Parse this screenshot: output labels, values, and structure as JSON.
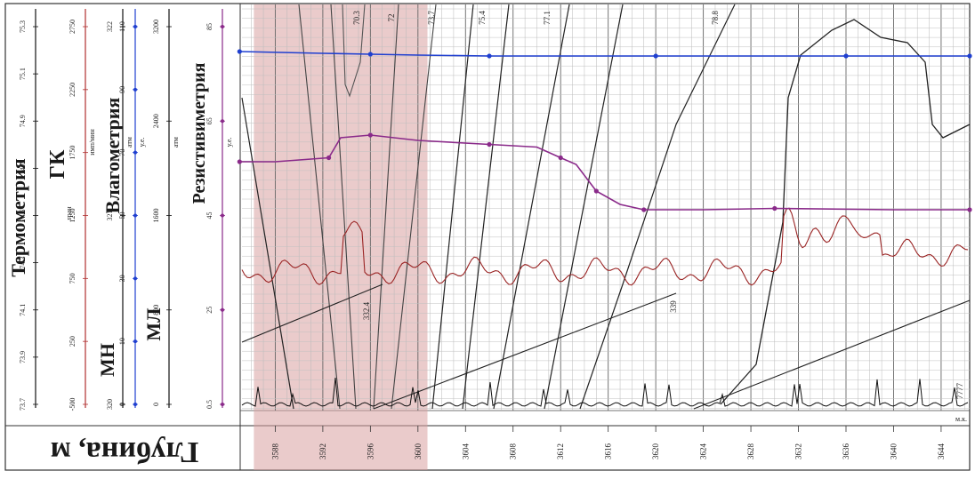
{
  "chart_data": {
    "type": "line",
    "orientation": "rotated-90",
    "depth_axis": {
      "title": "Глубина, м",
      "ticks": [
        3588,
        3592,
        3596,
        3600,
        3604,
        3608,
        3612,
        3616,
        3620,
        3624,
        3628,
        3632,
        3636,
        3640,
        3644
      ],
      "range": [
        3585.2,
        3646.4
      ],
      "note": "м.к."
    },
    "highlight_interval": [
      3586.2,
      3600.8
    ],
    "tracks": [
      {
        "name": "Термометрия",
        "scale_ticks": [
          "73.7",
          "73.9",
          "74.1",
          "74.3",
          "74.5",
          "74.7",
          "74.9",
          "75.1",
          "75.3"
        ],
        "color": "#111111"
      },
      {
        "name": "МН",
        "unit": "атм",
        "scale_ticks": [
          "320",
          "321",
          "322"
        ],
        "color": "#111111"
      },
      {
        "name": "ГК",
        "unit": "имп/мин",
        "scale_ticks": [
          "-500",
          "250",
          "750",
          "1250",
          "1750",
          "2250",
          "2750"
        ],
        "sub_ticks": [
          "-100",
          "250"
        ],
        "sub_unit": "гран",
        "color": "#b03030"
      },
      {
        "name": "МЛ",
        "unit": "атм",
        "scale_ticks": [
          "0",
          "800",
          "1600",
          "2400",
          "3200"
        ],
        "color": "#111111"
      },
      {
        "name": "Влагометрия",
        "unit": "у.е.",
        "scale_ticks": [
          "0",
          "10",
          "30",
          "50",
          "70",
          "90",
          "110"
        ],
        "color": "#1f3fd0"
      },
      {
        "name": "Резистивиметрия",
        "unit": "у.е.",
        "scale_ticks": [
          "0.5",
          "25",
          "45",
          "65",
          "85"
        ],
        "color": "#8a2a8a"
      }
    ],
    "curve_labels": [
      "70.3",
      "72",
      "73.7",
      "75.4",
      "77.1",
      "78.8",
      "332.4",
      "339",
      "7777"
    ],
    "series": [
      {
        "name": "Влагометрия",
        "color": "#1f3fd0",
        "depth": [
          3585,
          3592,
          3596,
          3600,
          3606,
          3612,
          3620,
          3630,
          3636,
          3640,
          3646.4
        ],
        "value": [
          75.8,
          75.6,
          75.5,
          75.4,
          75.3,
          75.3,
          75.3,
          75.3,
          75.3,
          75.3,
          75.3
        ]
      },
      {
        "name": "Резистивиметрия",
        "color": "#8a2a8a",
        "depth": [
          3585,
          3588,
          3592.5,
          3593.5,
          3596,
          3600,
          3606,
          3610,
          3612,
          3613.3,
          3615,
          3617,
          3619,
          3624,
          3630,
          3640,
          3646.4
        ],
        "value": [
          73.92,
          73.92,
          73.95,
          74.1,
          74.12,
          74.08,
          74.05,
          74.03,
          73.95,
          73.9,
          73.7,
          73.6,
          73.56,
          73.56,
          73.57,
          73.56,
          73.56
        ]
      }
    ]
  }
}
